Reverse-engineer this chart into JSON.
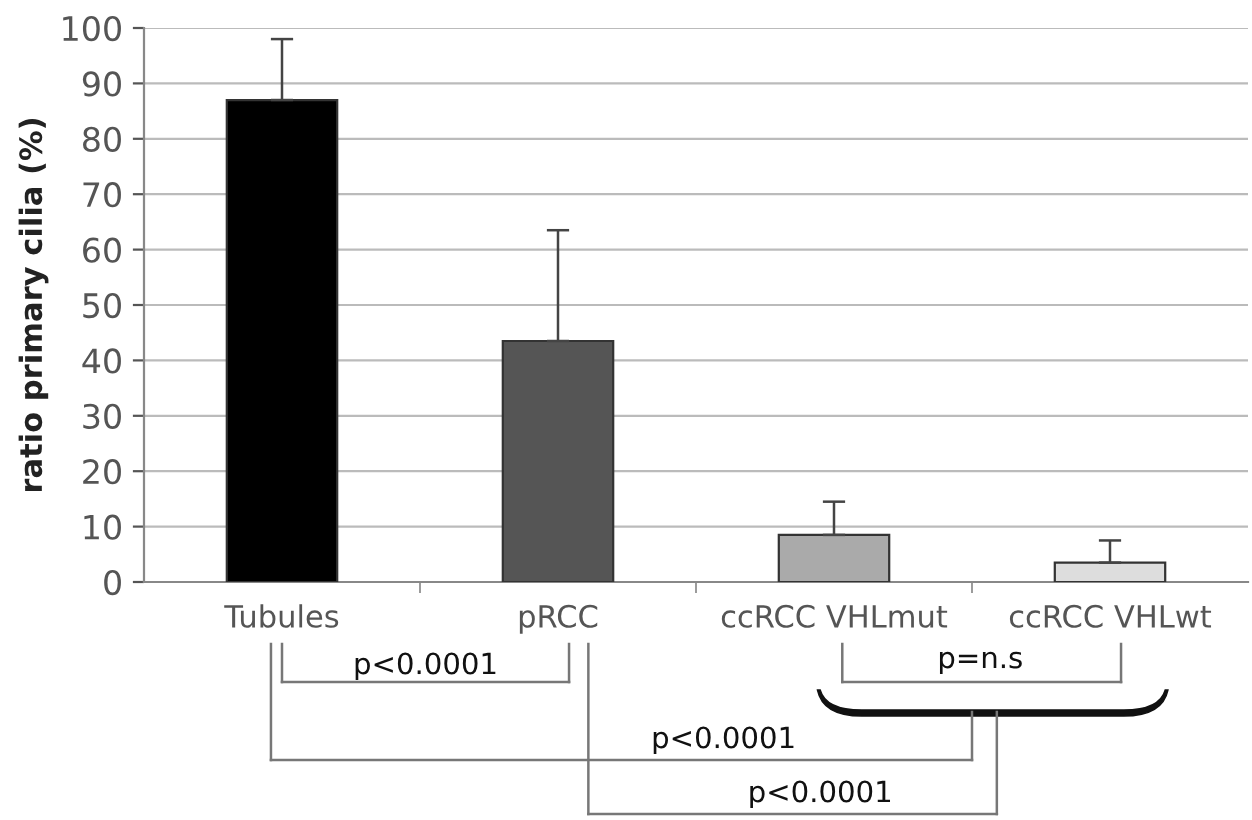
{
  "chart_data": {
    "type": "bar",
    "ylabel": "ratio primary cilia (%)",
    "categories": [
      "Tubules",
      "pRCC",
      "ccRCC VHLmut",
      "ccRCC VHLwt"
    ],
    "values": [
      87,
      43.5,
      8.5,
      3.5
    ],
    "colors": [
      "#000000",
      "#555555",
      "#aaaaaa",
      "#dddddd"
    ],
    "errors": [
      [
        87,
        98
      ],
      [
        43.5,
        63.5
      ],
      [
        8.5,
        14.5
      ],
      [
        3.5,
        7.5
      ]
    ],
    "ylim": [
      0,
      100
    ],
    "yticks": [
      0,
      10,
      20,
      30,
      40,
      50,
      60,
      70,
      80,
      90,
      100
    ],
    "grid": "y",
    "annotations": [
      "p<0.0001",
      "p=n.s",
      "p<0.0001",
      "p<0.0001"
    ]
  }
}
